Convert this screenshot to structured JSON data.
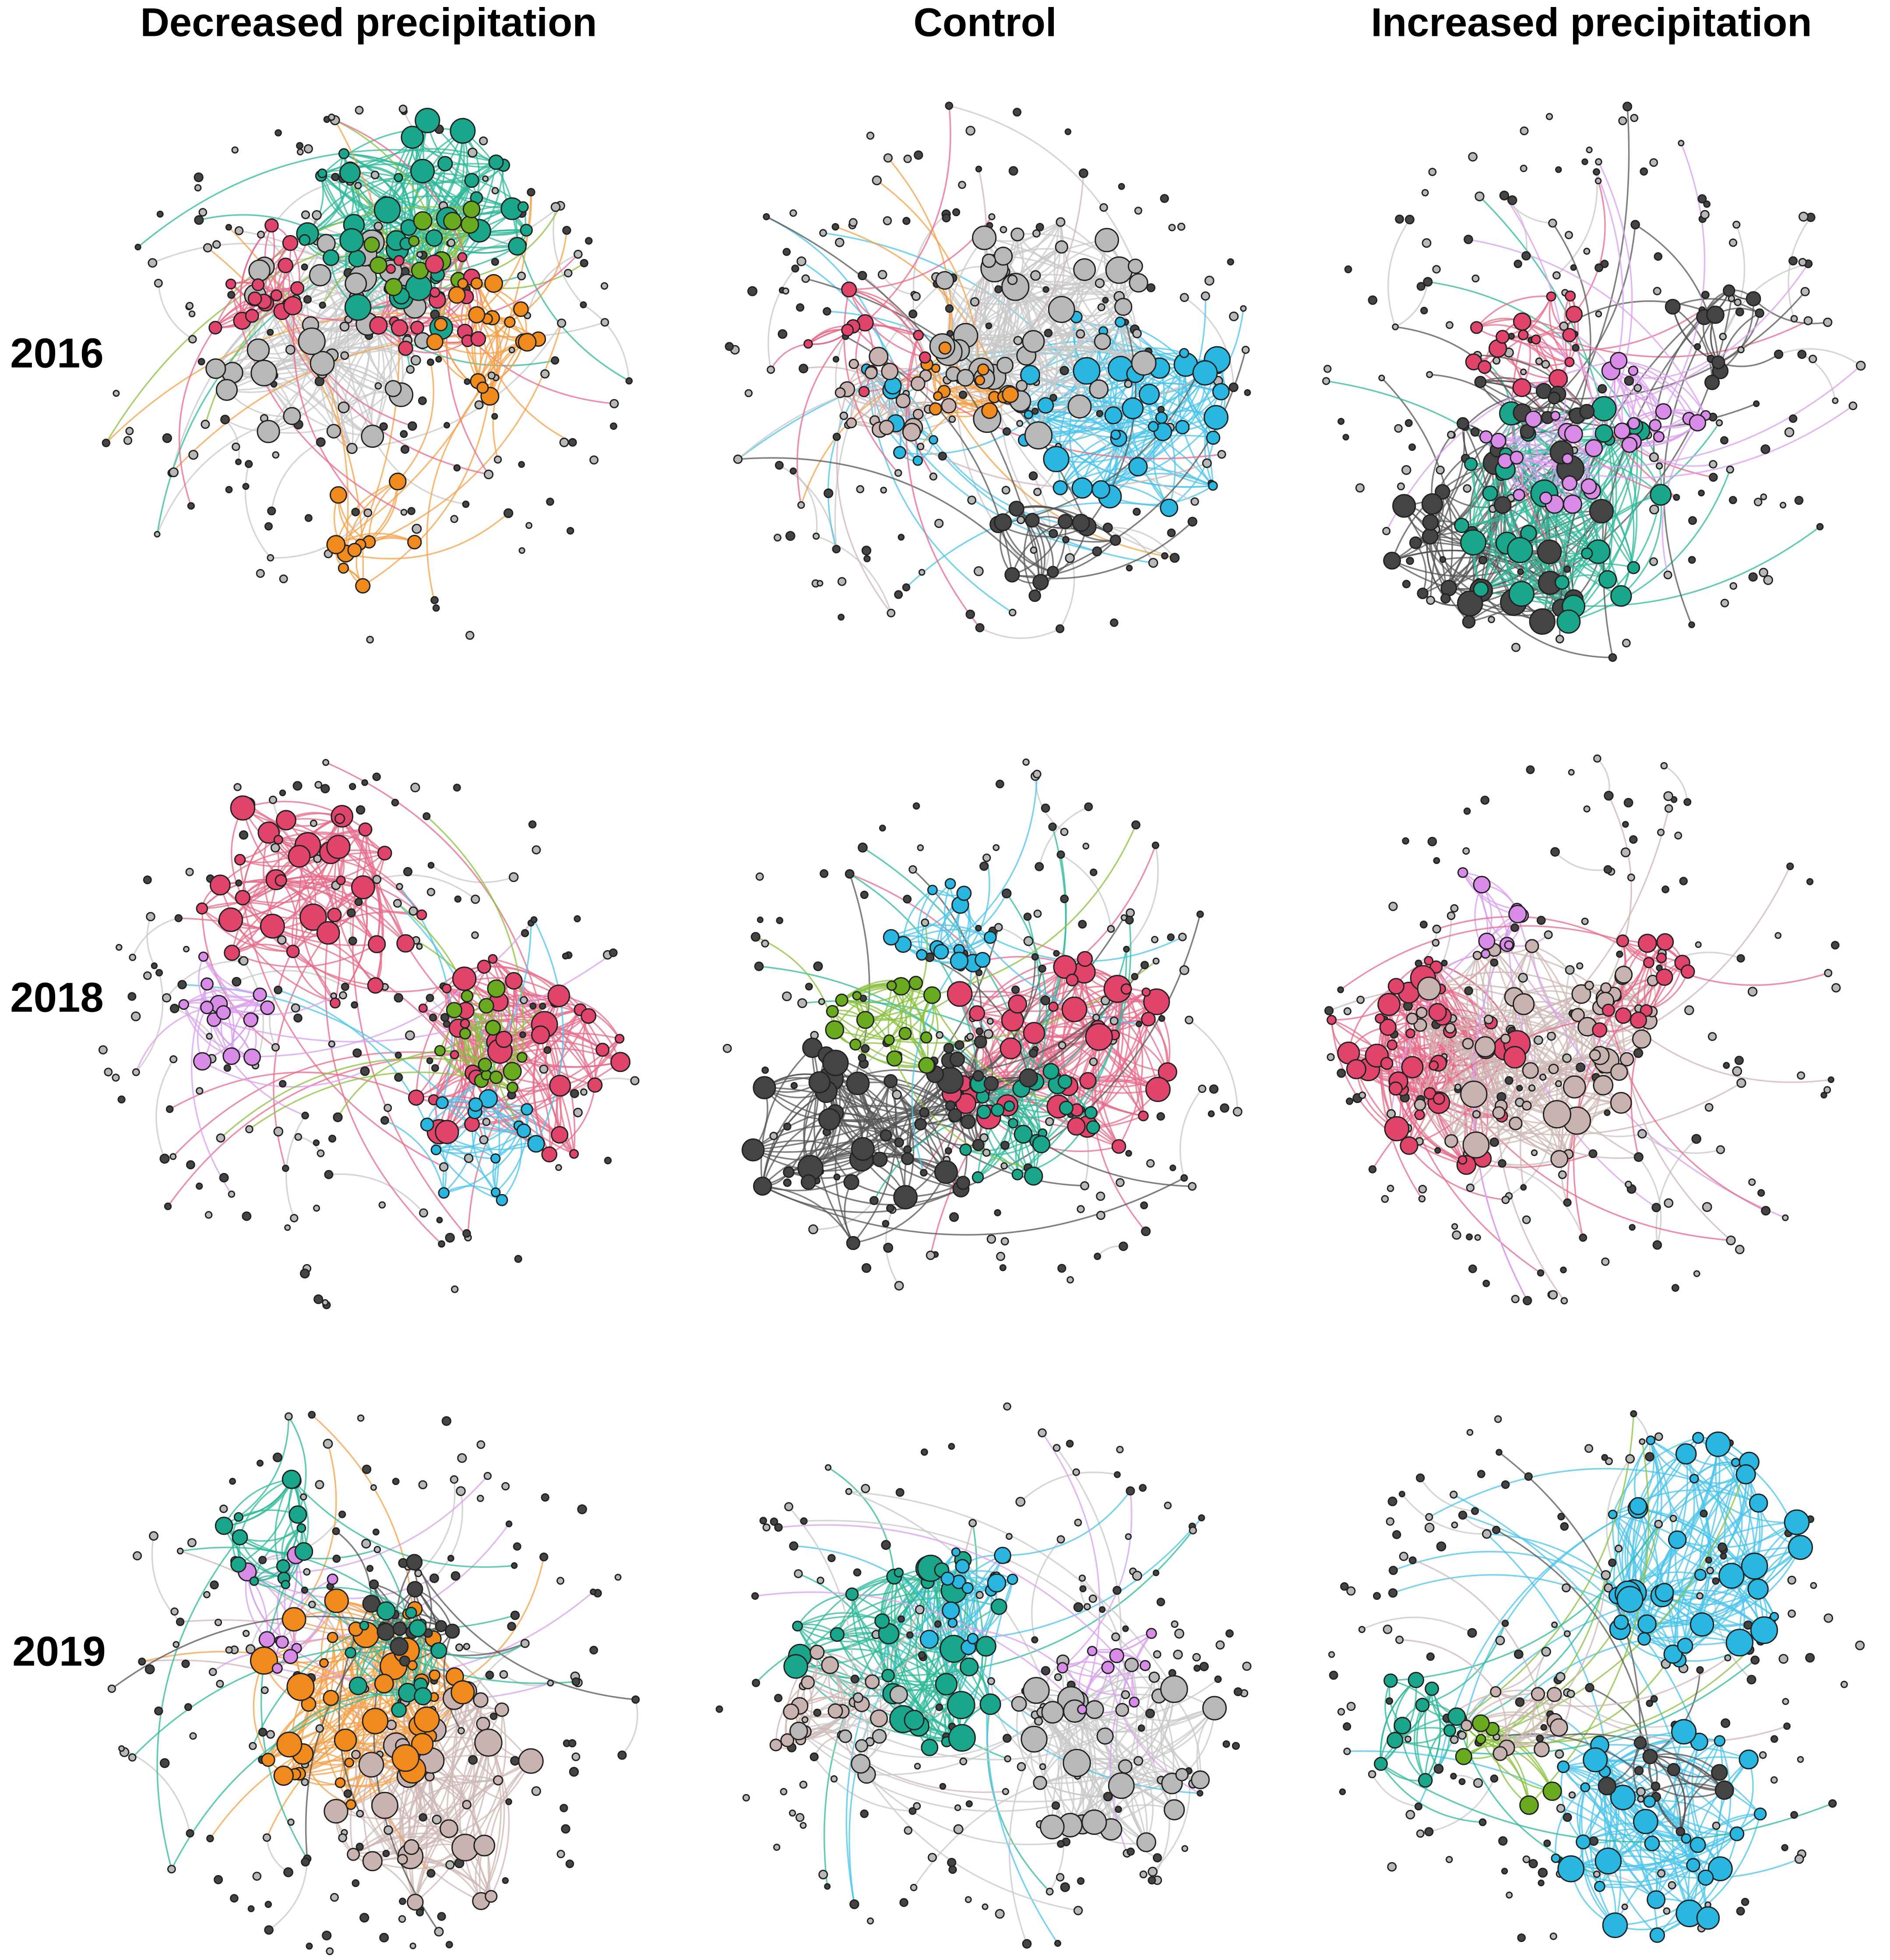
{
  "columns": [
    "Decreased precipitation",
    "Control",
    "Increased precipitation"
  ],
  "rows": [
    "2016",
    "2018",
    "2019"
  ]
}
